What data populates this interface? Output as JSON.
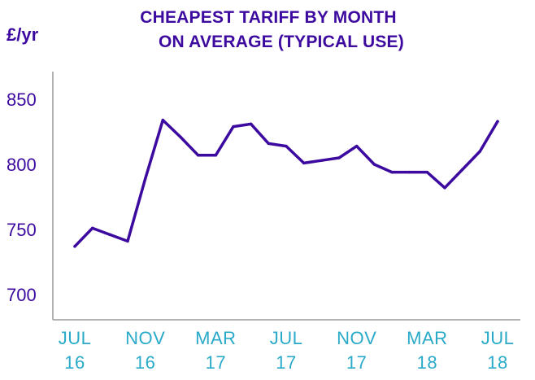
{
  "chart_data": {
    "type": "line",
    "title_lines": [
      "CHEAPEST TARIFF BY MONTH",
      "ON AVERAGE (TYPICAL USE)"
    ],
    "ylabel": "£/yr",
    "xlabel": "",
    "ylim": [
      690,
      870
    ],
    "y_ticks": [
      700,
      750,
      800,
      850
    ],
    "x_ticks": [
      {
        "month_index": 0,
        "line1": "JUL",
        "line2": "16"
      },
      {
        "month_index": 4,
        "line1": "NOV",
        "line2": "16"
      },
      {
        "month_index": 8,
        "line1": "MAR",
        "line2": "17"
      },
      {
        "month_index": 12,
        "line1": "JUL",
        "line2": "17"
      },
      {
        "month_index": 16,
        "line1": "NOV",
        "line2": "17"
      },
      {
        "month_index": 20,
        "line1": "MAR",
        "line2": "18"
      },
      {
        "month_index": 24,
        "line1": "JUL",
        "line2": "18"
      }
    ],
    "series": [
      {
        "x": [
          "Jul 16",
          "Aug 16",
          "Sep 16",
          "Oct 16",
          "Nov 16",
          "Dec 16",
          "Jan 17",
          "Feb 17",
          "Mar 17",
          "Apr 17",
          "May 17",
          "Jun 17",
          "Jul 17",
          "Aug 17",
          "Sep 17",
          "Oct 17",
          "Nov 17",
          "Dec 17",
          "Jan 18",
          "Feb 18",
          "Mar 18",
          "Apr 18",
          "May 18",
          "Jun 18",
          "Jul 18"
        ],
        "values": [
          737,
          751,
          746,
          741,
          789,
          834,
          821,
          807,
          807,
          829,
          831,
          816,
          814,
          801,
          803,
          805,
          814,
          800,
          794,
          794,
          794,
          782,
          796,
          810,
          833
        ],
        "color": "#3d0aa0"
      }
    ],
    "grid": false,
    "legend": "none"
  },
  "colors": {
    "title": "#3d0aa0",
    "y_labels": "#3d0aa0",
    "x_labels": "#29aac9",
    "axis": "#9a9a9a",
    "line": "#3d0aa0"
  }
}
